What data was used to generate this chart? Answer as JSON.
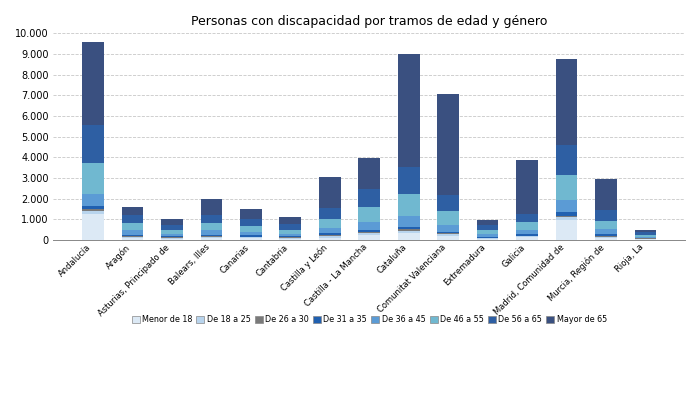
{
  "title": "Personas con discapacidad por tramos de edad y género",
  "categories": [
    "Andalucía",
    "Aragón",
    "Asturias, Principado de",
    "Balears, Illes",
    "Canarias",
    "Cantabria",
    "Castilla y León",
    "Castilla - La Mancha",
    "Cataluña",
    "Comunitat Valenciana",
    "Extremadura",
    "Galicia",
    "Madrid, Comunidad de",
    "Murcia, Región de",
    "Rioja, La"
  ],
  "age_groups": [
    "Menor de 18",
    "De 18 a 25",
    "De 26 a 30",
    "De 31 a 35",
    "De 36 a 45",
    "De 46 a 55",
    "De 56 a 65",
    "Mayor de 65"
  ],
  "colors": [
    "#dce9f5",
    "#b8d4ed",
    "#7a7a7a",
    "#2060b0",
    "#5b9bd5",
    "#70b8d0",
    "#2e5fa3",
    "#3a5080"
  ],
  "data": {
    "Menor de 18": [
      1250,
      80,
      60,
      80,
      80,
      60,
      100,
      250,
      350,
      200,
      60,
      120,
      950,
      100,
      35
    ],
    "De 18 a 25": [
      150,
      60,
      40,
      60,
      50,
      40,
      80,
      80,
      100,
      70,
      30,
      50,
      150,
      60,
      20
    ],
    "De 26 a 30": [
      80,
      40,
      25,
      40,
      30,
      25,
      50,
      50,
      70,
      45,
      20,
      35,
      80,
      40,
      15
    ],
    "De 31 a 35": [
      150,
      80,
      45,
      80,
      60,
      45,
      90,
      90,
      120,
      80,
      35,
      60,
      150,
      75,
      20
    ],
    "De 36 a 45": [
      600,
      200,
      120,
      200,
      160,
      120,
      240,
      380,
      520,
      340,
      120,
      200,
      600,
      240,
      60
    ],
    "De 46 a 55": [
      1500,
      350,
      210,
      380,
      290,
      210,
      460,
      760,
      1050,
      680,
      200,
      380,
      1200,
      420,
      100
    ],
    "De 56 a 65": [
      1850,
      380,
      240,
      380,
      340,
      250,
      500,
      860,
      1300,
      780,
      240,
      420,
      1450,
      500,
      110
    ],
    "Mayor de 65": [
      4000,
      380,
      280,
      750,
      480,
      350,
      1530,
      1500,
      5500,
      4850,
      280,
      2600,
      4200,
      1500,
      130
    ]
  },
  "ylim": [
    0,
    10000
  ],
  "yticks": [
    0,
    1000,
    2000,
    3000,
    4000,
    5000,
    6000,
    7000,
    8000,
    9000,
    10000
  ],
  "background_color": "#ffffff",
  "grid_color": "#c8c8c8"
}
